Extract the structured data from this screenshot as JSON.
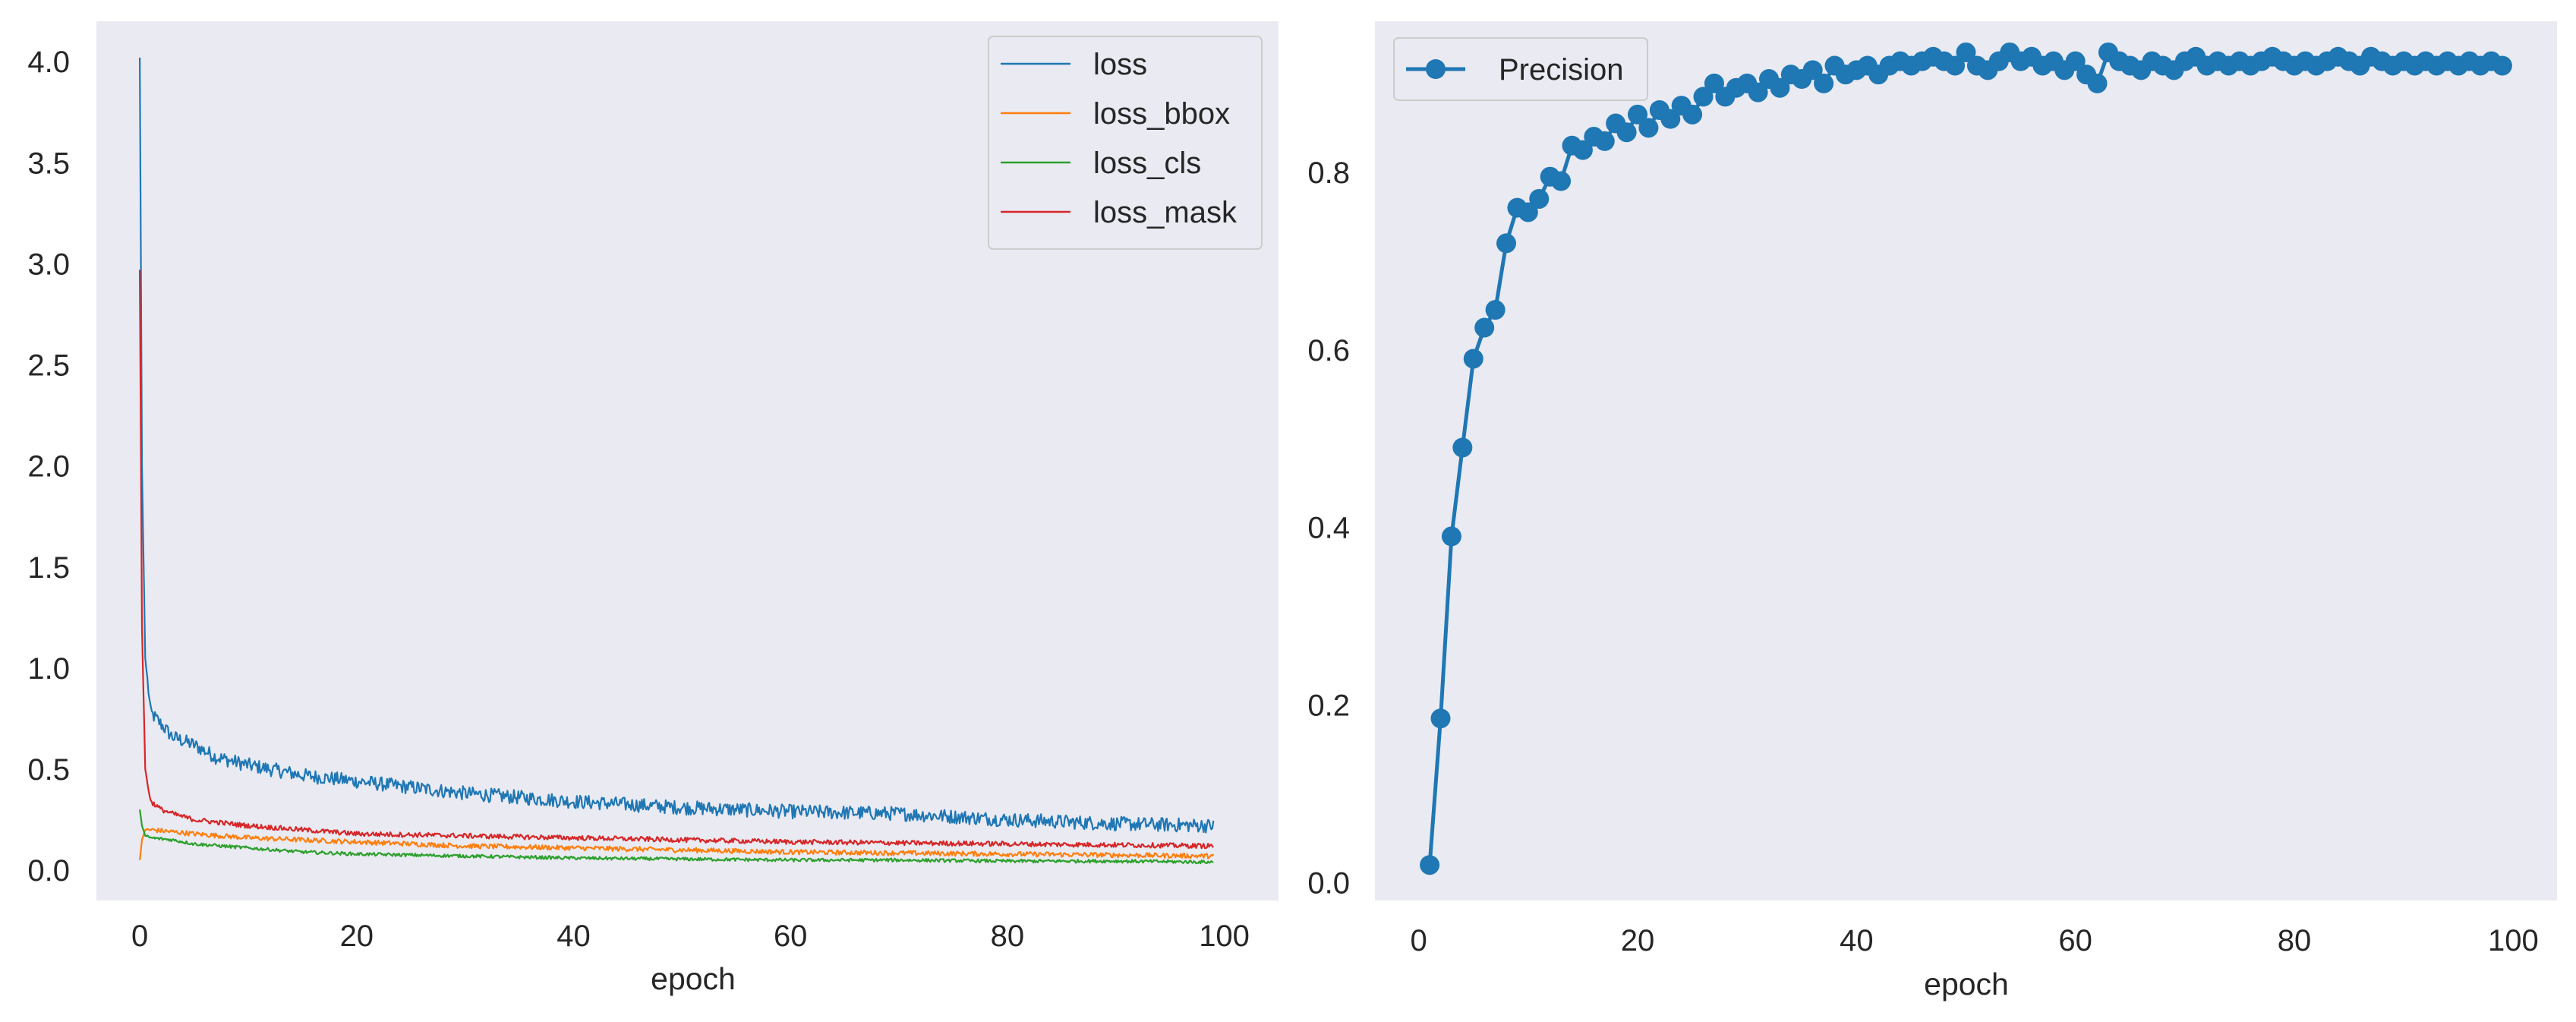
{
  "chart_data": [
    {
      "type": "line",
      "xlabel": "epoch",
      "ylabel": "",
      "xlim": [
        -4,
        105
      ],
      "ylim": [
        -0.15,
        4.2
      ],
      "x_ticks": [
        0,
        20,
        40,
        60,
        80,
        100
      ],
      "y_ticks": [
        0.0,
        0.5,
        1.0,
        1.5,
        2.0,
        2.5,
        3.0,
        3.5,
        4.0
      ],
      "x_tick_labels": [
        "0",
        "20",
        "40",
        "60",
        "80",
        "100"
      ],
      "y_tick_labels": [
        "0.0",
        "0.5",
        "1.0",
        "1.5",
        "2.0",
        "2.5",
        "3.0",
        "3.5",
        "4.0"
      ],
      "grid": false,
      "legend": "top-right",
      "background": "#eaeaf2",
      "series": [
        {
          "name": "loss",
          "color": "#1f77b4",
          "x": [
            0,
            0.2,
            0.5,
            1,
            2,
            3,
            5,
            7,
            10,
            15,
            20,
            25,
            30,
            40,
            50,
            60,
            70,
            80,
            90,
            99
          ],
          "values": [
            4.02,
            2.0,
            1.05,
            0.78,
            0.72,
            0.66,
            0.62,
            0.56,
            0.52,
            0.47,
            0.44,
            0.41,
            0.38,
            0.34,
            0.31,
            0.29,
            0.28,
            0.25,
            0.23,
            0.22
          ],
          "noise": 0.035
        },
        {
          "name": "loss_bbox",
          "color": "#ff7f0e",
          "x": [
            0,
            0.2,
            0.5,
            1,
            3,
            5,
            10,
            15,
            20,
            30,
            40,
            50,
            60,
            70,
            80,
            90,
            99
          ],
          "values": [
            0.05,
            0.15,
            0.2,
            0.2,
            0.19,
            0.18,
            0.16,
            0.15,
            0.14,
            0.12,
            0.11,
            0.1,
            0.09,
            0.085,
            0.08,
            0.075,
            0.07
          ],
          "noise": 0.012
        },
        {
          "name": "loss_cls",
          "color": "#2ca02c",
          "x": [
            0,
            0.2,
            0.5,
            1,
            3,
            5,
            10,
            15,
            20,
            30,
            40,
            50,
            60,
            70,
            80,
            90,
            99
          ],
          "values": [
            0.3,
            0.22,
            0.17,
            0.16,
            0.15,
            0.13,
            0.11,
            0.09,
            0.08,
            0.07,
            0.06,
            0.055,
            0.05,
            0.05,
            0.045,
            0.045,
            0.04
          ],
          "noise": 0.008
        },
        {
          "name": "loss_mask",
          "color": "#d62728",
          "x": [
            0,
            0.2,
            0.5,
            1,
            2,
            3,
            5,
            10,
            15,
            20,
            30,
            40,
            50,
            60,
            70,
            80,
            90,
            99
          ],
          "values": [
            2.97,
            1.2,
            0.5,
            0.34,
            0.3,
            0.28,
            0.25,
            0.22,
            0.2,
            0.18,
            0.17,
            0.16,
            0.15,
            0.14,
            0.135,
            0.13,
            0.125,
            0.12
          ],
          "noise": 0.012
        }
      ]
    },
    {
      "type": "line",
      "xlabel": "epoch",
      "ylabel": "",
      "xlim": [
        -4,
        104
      ],
      "ylim": [
        -0.02,
        0.97
      ],
      "x_ticks": [
        0,
        20,
        40,
        60,
        80,
        100
      ],
      "y_ticks": [
        0.0,
        0.2,
        0.4,
        0.6,
        0.8
      ],
      "x_tick_labels": [
        "0",
        "20",
        "40",
        "60",
        "80",
        "100"
      ],
      "y_tick_labels": [
        "0.0",
        "0.2",
        "0.4",
        "0.6",
        "0.8"
      ],
      "grid": false,
      "legend": "top-left",
      "background": "#eaeaf2",
      "series": [
        {
          "name": "Precision",
          "color": "#1f77b4",
          "marker": "circle",
          "x": [
            1,
            2,
            3,
            4,
            5,
            6,
            7,
            8,
            9,
            10,
            11,
            12,
            13,
            14,
            15,
            16,
            17,
            18,
            19,
            20,
            21,
            22,
            23,
            24,
            25,
            26,
            27,
            28,
            29,
            30,
            31,
            32,
            33,
            34,
            35,
            36,
            37,
            38,
            39,
            40,
            41,
            42,
            43,
            44,
            45,
            46,
            47,
            48,
            49,
            50,
            51,
            52,
            53,
            54,
            55,
            56,
            57,
            58,
            59,
            60,
            61,
            62,
            63,
            64,
            65,
            66,
            67,
            68,
            69,
            70,
            71,
            72,
            73,
            74,
            75,
            76,
            77,
            78,
            79,
            80,
            81,
            82,
            83,
            84,
            85,
            86,
            87,
            88,
            89,
            90,
            91,
            92,
            93,
            94,
            95,
            96,
            97,
            98,
            99
          ],
          "values": [
            0.02,
            0.185,
            0.39,
            0.49,
            0.59,
            0.625,
            0.645,
            0.72,
            0.76,
            0.755,
            0.77,
            0.795,
            0.79,
            0.83,
            0.825,
            0.84,
            0.835,
            0.855,
            0.845,
            0.865,
            0.85,
            0.87,
            0.86,
            0.875,
            0.865,
            0.885,
            0.9,
            0.885,
            0.895,
            0.9,
            0.89,
            0.905,
            0.895,
            0.91,
            0.905,
            0.915,
            0.9,
            0.92,
            0.91,
            0.915,
            0.92,
            0.91,
            0.92,
            0.925,
            0.92,
            0.925,
            0.93,
            0.925,
            0.92,
            0.935,
            0.92,
            0.915,
            0.925,
            0.935,
            0.925,
            0.93,
            0.92,
            0.925,
            0.915,
            0.925,
            0.91,
            0.9,
            0.935,
            0.925,
            0.92,
            0.915,
            0.925,
            0.92,
            0.915,
            0.925,
            0.93,
            0.92,
            0.925,
            0.92,
            0.925,
            0.92,
            0.925,
            0.93,
            0.925,
            0.92,
            0.925,
            0.92,
            0.925,
            0.93,
            0.925,
            0.92,
            0.93,
            0.925,
            0.92,
            0.925,
            0.92,
            0.925,
            0.92,
            0.925,
            0.92,
            0.925,
            0.92,
            0.925,
            0.92
          ]
        }
      ]
    }
  ]
}
